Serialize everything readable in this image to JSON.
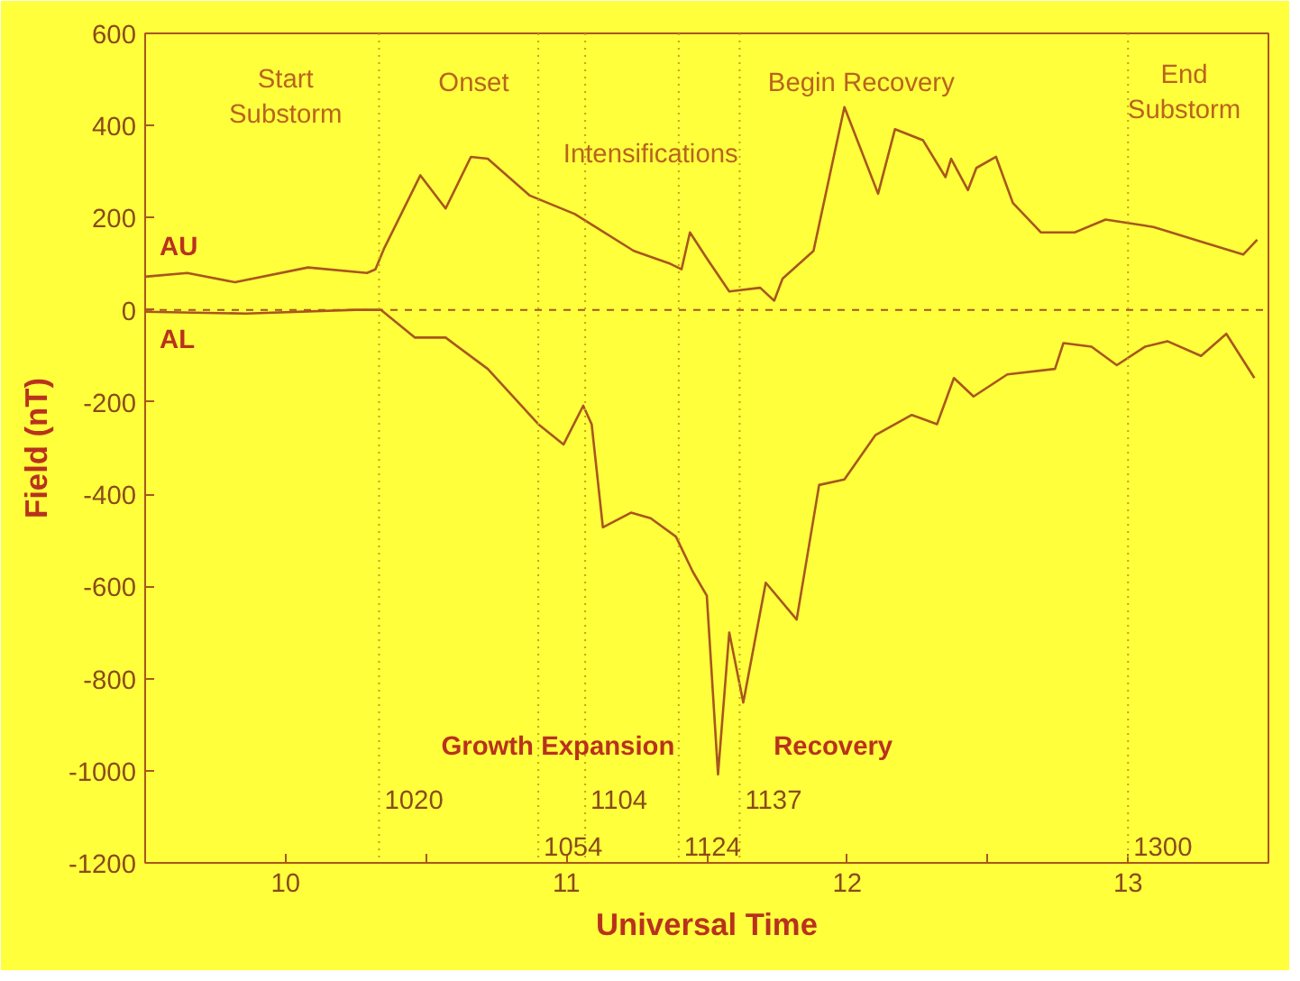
{
  "chart_data": {
    "type": "line",
    "xlabel": "Universal Time",
    "ylabel": "Field (nT)",
    "xlim": [
      9.5,
      13.5
    ],
    "ylim": [
      -1200,
      600
    ],
    "xticks": [
      10,
      {
        "value": 10.5,
        "label": null
      },
      11,
      {
        "value": 11.5,
        "label": null
      },
      12,
      {
        "value": 12.5,
        "label": null
      },
      13
    ],
    "yticks": [
      -1200,
      -1000,
      -800,
      -600,
      -400,
      -200,
      0,
      200,
      400,
      600
    ],
    "grid": false,
    "line_style": "solid",
    "marker": "none",
    "series": [
      {
        "name": "AU",
        "color": "#a8561e",
        "x": [
          9.5,
          9.65,
          9.82,
          10.08,
          10.29,
          10.32,
          10.35,
          10.48,
          10.57,
          10.66,
          10.72,
          10.87,
          11.03,
          11.24,
          11.37,
          11.41,
          11.44,
          11.5,
          11.58,
          11.69,
          11.74,
          11.77,
          11.88,
          11.99,
          12.11,
          12.17,
          12.27,
          12.35,
          12.37,
          12.43,
          12.46,
          12.53,
          12.59,
          12.69,
          12.81,
          12.92,
          13.09,
          13.26,
          13.41,
          13.46
        ],
        "values": [
          72,
          80,
          60,
          92,
          80,
          88,
          132,
          292,
          220,
          332,
          328,
          248,
          208,
          128,
          100,
          88,
          168,
          112,
          40,
          48,
          20,
          68,
          128,
          440,
          252,
          392,
          368,
          288,
          328,
          260,
          308,
          332,
          232,
          168,
          168,
          196,
          180,
          148,
          120,
          152
        ]
      },
      {
        "name": "AL",
        "color": "#a8561e",
        "x": [
          9.5,
          9.86,
          10.25,
          10.34,
          10.46,
          10.57,
          10.72,
          10.9,
          10.99,
          11.06,
          11.09,
          11.13,
          11.23,
          11.3,
          11.39,
          11.45,
          11.5,
          11.54,
          11.58,
          11.63,
          11.71,
          11.82,
          11.9,
          11.99,
          12.1,
          12.23,
          12.32,
          12.38,
          12.45,
          12.57,
          12.74,
          12.77,
          12.87,
          12.96,
          13.06,
          13.14,
          13.26,
          13.35,
          13.45
        ],
        "values": [
          -4,
          -8,
          0,
          0,
          -60,
          -60,
          -128,
          -248,
          -292,
          -208,
          -248,
          -472,
          -440,
          -452,
          -492,
          -568,
          -620,
          -1008,
          -700,
          -852,
          -592,
          -672,
          -380,
          -368,
          -272,
          -228,
          -248,
          -148,
          -188,
          -140,
          -128,
          -72,
          -80,
          -120,
          -80,
          -68,
          -100,
          -52,
          -148
        ]
      }
    ],
    "ref_lines": [
      {
        "axis": "y",
        "value": 0,
        "line_style": "dashed",
        "color": "#a8561e"
      },
      {
        "axis": "x",
        "value": 10.333,
        "line_style": "dotted",
        "color": "#c8a020"
      },
      {
        "axis": "x",
        "value": 10.9,
        "line_style": "dotted",
        "color": "#c8a020"
      },
      {
        "axis": "x",
        "value": 11.067,
        "line_style": "dotted",
        "color": "#c8a020"
      },
      {
        "axis": "x",
        "value": 11.4,
        "line_style": "dotted",
        "color": "#c8a020"
      },
      {
        "axis": "x",
        "value": 11.617,
        "line_style": "dotted",
        "color": "#c8a020"
      },
      {
        "axis": "x",
        "value": 13.0,
        "line_style": "dotted",
        "color": "#c8a020"
      }
    ],
    "annotations": [
      "Start\nSubstorm",
      "Onset",
      "Intensifications",
      "Begin Recovery",
      "End\nSubstorm",
      "Growth Expansion",
      "Recovery",
      "1020",
      "1054",
      "1104",
      "1124",
      "1137",
      "1300"
    ]
  }
}
